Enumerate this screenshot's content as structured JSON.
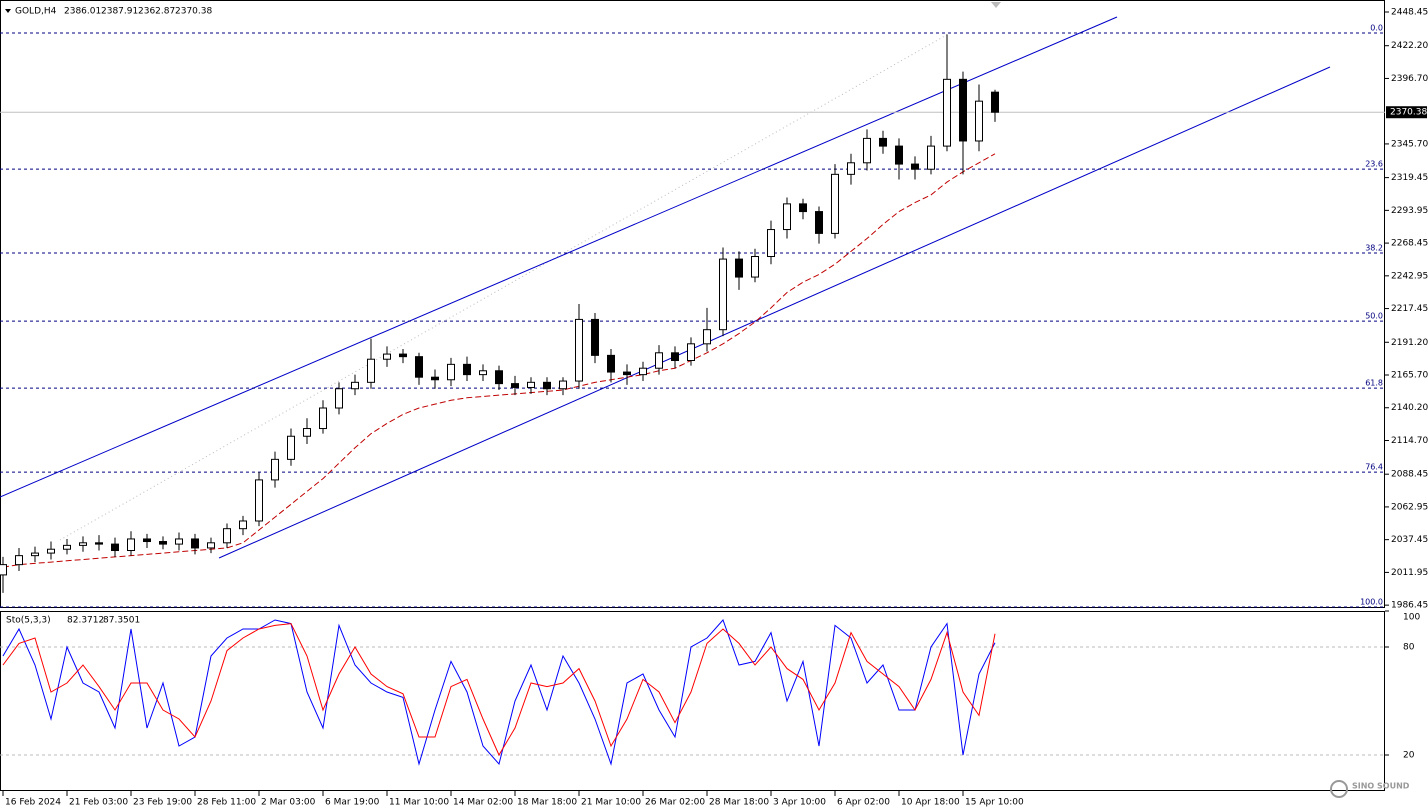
{
  "chart_data": [
    {
      "type": "candlestick",
      "symbol": "GOLD,H4",
      "categories": [
        "16 Feb 2024",
        null,
        null,
        null,
        "21 Feb 03:00",
        null,
        null,
        null,
        "23 Feb 19:00",
        null,
        null,
        null,
        "28 Feb 11:00",
        null,
        null,
        null,
        "2 Mar 03:00",
        null,
        null,
        null,
        "6 Mar 19:00",
        null,
        null,
        null,
        "11 Mar 10:00",
        null,
        null,
        null,
        "14 Mar 02:00",
        null,
        null,
        null,
        "18 Mar 18:00",
        null,
        null,
        null,
        "21 Mar 10:00",
        null,
        null,
        null,
        "26 Mar 02:00",
        null,
        null,
        null,
        "28 Mar 18:00",
        null,
        null,
        null,
        "3 Apr 10:00",
        null,
        null,
        null,
        "6 Apr 02:00",
        null,
        null,
        null,
        "10 Apr 18:00",
        null,
        null,
        null,
        "15 Apr 10:00",
        null,
        null
      ],
      "open": [
        2010,
        2018,
        2025,
        2027,
        2030,
        2033,
        2035,
        2034,
        2029,
        2038,
        2036,
        2034,
        2038,
        2031,
        2035,
        2046,
        2052,
        2084,
        2100,
        2118,
        2124,
        2140,
        2155,
        2160,
        2178,
        2182,
        2180,
        2164,
        2162,
        2174,
        2166,
        2169,
        2159,
        2156,
        2160,
        2155,
        2161,
        2209,
        2181,
        2168,
        2166,
        2171,
        2183,
        2177,
        2190,
        2201,
        2256,
        2242,
        2258,
        2279,
        2299,
        2293,
        2276,
        2322,
        2331,
        2350,
        2344,
        2330,
        2326,
        2344,
        2396,
        2348,
        2386.01
      ],
      "high": [
        2024,
        2031,
        2032,
        2036,
        2038,
        2040,
        2041,
        2039,
        2044,
        2042,
        2040,
        2043,
        2042,
        2039,
        2050,
        2056,
        2090,
        2106,
        2124,
        2132,
        2146,
        2160,
        2166,
        2194,
        2188,
        2186,
        2183,
        2170,
        2179,
        2180,
        2174,
        2173,
        2165,
        2164,
        2164,
        2164,
        2221,
        2214,
        2186,
        2174,
        2176,
        2189,
        2188,
        2195,
        2218,
        2265,
        2262,
        2264,
        2286,
        2304,
        2303,
        2297,
        2330,
        2338,
        2357,
        2356,
        2350,
        2336,
        2352,
        2431,
        2402,
        2392,
        2387.91
      ],
      "low": [
        1996,
        2013,
        2020,
        2022,
        2026,
        2028,
        2029,
        2024,
        2025,
        2031,
        2030,
        2029,
        2026,
        2027,
        2031,
        2041,
        2048,
        2078,
        2095,
        2112,
        2120,
        2135,
        2150,
        2155,
        2172,
        2175,
        2158,
        2155,
        2157,
        2161,
        2161,
        2154,
        2150,
        2151,
        2150,
        2150,
        2155,
        2175,
        2160,
        2158,
        2161,
        2166,
        2171,
        2173,
        2184,
        2196,
        2232,
        2238,
        2252,
        2272,
        2287,
        2268,
        2272,
        2314,
        2325,
        2338,
        2318,
        2318,
        2322,
        2340,
        2322,
        2340,
        2362.87
      ],
      "close": [
        2018,
        2025,
        2027,
        2030,
        2033,
        2035,
        2034,
        2029,
        2038,
        2036,
        2034,
        2038,
        2031,
        2035,
        2046,
        2052,
        2084,
        2100,
        2118,
        2124,
        2140,
        2155,
        2160,
        2178,
        2182,
        2180,
        2164,
        2162,
        2174,
        2166,
        2169,
        2159,
        2156,
        2160,
        2155,
        2161,
        2209,
        2181,
        2168,
        2166,
        2171,
        2183,
        2177,
        2190,
        2201,
        2256,
        2242,
        2258,
        2279,
        2299,
        2293,
        2276,
        2322,
        2331,
        2350,
        2344,
        2330,
        2326,
        2344,
        2396,
        2348,
        2379,
        2370.38
      ],
      "moving_average": {
        "color": "#c00000",
        "values": [
          2016,
          2018,
          2019,
          2020,
          2021,
          2022,
          2023,
          2024,
          2025,
          2026,
          2027,
          2028,
          2029,
          2030,
          2031,
          2035,
          2045,
          2055,
          2065,
          2075,
          2085,
          2097,
          2109,
          2120,
          2128,
          2135,
          2140,
          2143,
          2146,
          2148,
          2149,
          2150,
          2151,
          2152,
          2153,
          2154,
          2157,
          2160,
          2162,
          2164,
          2166,
          2169,
          2171,
          2177,
          2183,
          2190,
          2198,
          2207,
          2218,
          2230,
          2238,
          2244,
          2252,
          2262,
          2272,
          2283,
          2293,
          2300,
          2306,
          2316,
          2324,
          2331,
          2338
        ]
      },
      "fib_levels": [
        {
          "label": "0.0",
          "price": 2432.1
        },
        {
          "label": "23.6",
          "price": 2326.1
        },
        {
          "label": "38.2",
          "price": 2260.7
        },
        {
          "label": "50.0",
          "price": 2207.7
        },
        {
          "label": "61.8",
          "price": 2155.5
        },
        {
          "label": "76.4",
          "price": 2090.1
        },
        {
          "label": "100.0",
          "price": 1985.0
        }
      ],
      "ylim": [
        1985,
        2457.8
      ],
      "yticks": [
        2448.45,
        {
          "value": 2422.2,
          "label": "2422.20"
        },
        {
          "value": 2396.7,
          "label": "2396.70"
        },
        {
          "value": 2345.7,
          "label": "2345.70"
        },
        2319.45,
        2293.95,
        2268.45,
        2242.95,
        2217.45,
        {
          "value": 2191.2,
          "label": "2191.20"
        },
        {
          "value": 2165.7,
          "label": "2165.70"
        },
        {
          "value": 2140.2,
          "label": "2140.20"
        },
        {
          "value": 2114.7,
          "label": "2114.70"
        },
        2088.45,
        2062.95,
        2037.45,
        2011.95,
        1986.45
      ],
      "up_color": "#ffffff",
      "down_color": "#000000"
    },
    {
      "type": "stochastic",
      "indicator": "Sto(5,3,3)",
      "series": [
        {
          "color": "#0000ff",
          "values": [
            75,
            90,
            70,
            40,
            80,
            60,
            55,
            35,
            90,
            35,
            60,
            25,
            30,
            75,
            85,
            90,
            90,
            95,
            93,
            55,
            35,
            92,
            70,
            60,
            55,
            52,
            15,
            45,
            72,
            55,
            25,
            15,
            50,
            70,
            45,
            75,
            60,
            40,
            15,
            60,
            65,
            45,
            30,
            80,
            85,
            95,
            70,
            72,
            88,
            50,
            72,
            25,
            92,
            85,
            60,
            70,
            45,
            45,
            80,
            93,
            20,
            65,
            82.3712
          ]
        },
        {
          "color": "#ff0000",
          "values": [
            70,
            82,
            85,
            55,
            60,
            70,
            58,
            45,
            60,
            60,
            45,
            40,
            30,
            50,
            78,
            85,
            90,
            92,
            93,
            75,
            45,
            65,
            80,
            65,
            58,
            54,
            30,
            30,
            58,
            62,
            40,
            20,
            35,
            60,
            58,
            60,
            68,
            50,
            25,
            40,
            62,
            55,
            38,
            55,
            82,
            90,
            82,
            70,
            80,
            68,
            62,
            45,
            60,
            88,
            72,
            65,
            58,
            45,
            62,
            88,
            55,
            42,
            87.3501
          ]
        }
      ],
      "ylim": [
        0,
        100
      ],
      "yticks": [
        100,
        80,
        20
      ]
    },
    {
      "watermark": "SINO SOUND"
    }
  ]
}
